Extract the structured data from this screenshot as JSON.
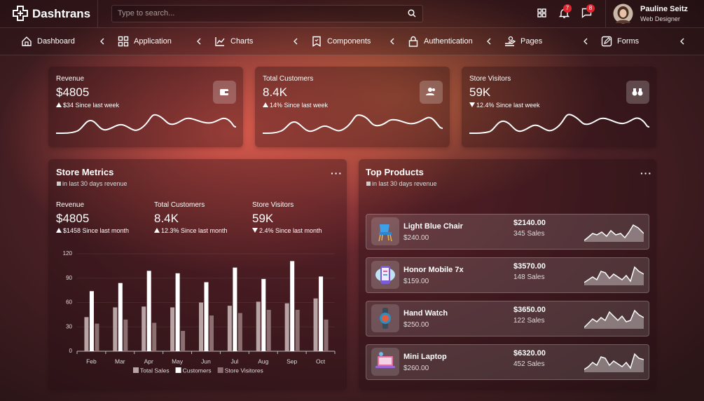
{
  "header": {
    "brand": "Dashtrans",
    "search_placeholder": "Type to search...",
    "notifications": "7",
    "messages": "8",
    "user_name": "Pauline Seitz",
    "user_role": "Web Designer"
  },
  "nav": [
    "Dashboard",
    "Application",
    "Charts",
    "Components",
    "Authentication",
    "Pages",
    "Forms"
  ],
  "stat_cards": [
    {
      "label": "Revenue",
      "value": "$4805",
      "change": "$34 Since last week",
      "trend": "up"
    },
    {
      "label": "Total Customers",
      "value": "8.4K",
      "change": "14% Since last week",
      "trend": "up"
    },
    {
      "label": "Store Visitors",
      "value": "59K",
      "change": "12.4% Since last week",
      "trend": "down"
    }
  ],
  "store_metrics": {
    "title": "Store Metrics",
    "subtitle": "in last 30 days revenue",
    "metrics": [
      {
        "label": "Revenue",
        "value": "$4805",
        "change": "$1458 Since last month",
        "trend": "up"
      },
      {
        "label": "Total Customers",
        "value": "8.4K",
        "change": "12.3% Since last month",
        "trend": "up"
      },
      {
        "label": "Store Visitors",
        "value": "59K",
        "change": "2.4% Since last month",
        "trend": "down"
      }
    ],
    "chart": {
      "type": "bar",
      "categories": [
        "Feb",
        "Mar",
        "Apr",
        "May",
        "Jun",
        "Jul",
        "Aug",
        "Sep",
        "Oct"
      ],
      "series": [
        {
          "name": "Total Sales",
          "color": "#b9a4a5",
          "values": [
            42,
            54,
            55,
            54,
            60,
            56,
            61,
            59,
            65
          ]
        },
        {
          "name": "Customers",
          "color": "#ffffff",
          "values": [
            74,
            84,
            99,
            96,
            85,
            103,
            89,
            111,
            92
          ]
        },
        {
          "name": "Store Visitores",
          "color": "#8c6f71",
          "values": [
            34,
            39,
            35,
            25,
            44,
            47,
            51,
            51,
            39
          ]
        }
      ],
      "ylim": [
        0,
        120
      ],
      "yticks": [
        0,
        30,
        60,
        90,
        120
      ]
    }
  },
  "top_products": {
    "title": "Top Products",
    "subtitle": "in last 30 days revenue",
    "items": [
      {
        "name": "Light Blue Chair",
        "price": "$240.00",
        "total": "$2140.00",
        "sales": "345 Sales"
      },
      {
        "name": "Honor Mobile 7x",
        "price": "$159.00",
        "total": "$3570.00",
        "sales": "148 Sales"
      },
      {
        "name": "Hand Watch",
        "price": "$250.00",
        "total": "$3650.00",
        "sales": "122 Sales"
      },
      {
        "name": "Mini Laptop",
        "price": "$260.00",
        "total": "$6320.00",
        "sales": "452 Sales"
      }
    ]
  }
}
